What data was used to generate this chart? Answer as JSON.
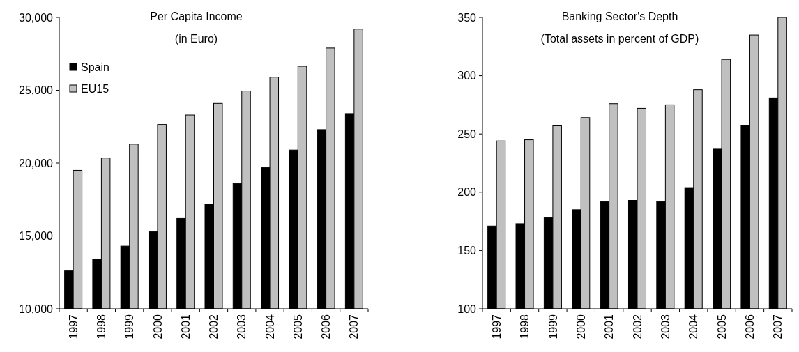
{
  "chart_data": [
    {
      "type": "bar",
      "title": "Per Capita Income",
      "subtitle": "(in Euro)",
      "categories": [
        "1997",
        "1998",
        "1999",
        "2000",
        "2001",
        "2002",
        "2003",
        "2004",
        "2005",
        "2006",
        "2007"
      ],
      "series": [
        {
          "name": "Spain",
          "color": "#000000",
          "values": [
            12600,
            13400,
            14300,
            15300,
            16200,
            17200,
            18600,
            19700,
            20900,
            22300,
            23400
          ]
        },
        {
          "name": "EU15",
          "color": "#c0c0c0",
          "values": [
            19500,
            20350,
            21300,
            22650,
            23300,
            24100,
            24950,
            25900,
            26650,
            27900,
            29200
          ]
        }
      ],
      "ylim": [
        10000,
        30000
      ],
      "yticks": [
        {
          "value": 10000,
          "label": "10,000"
        },
        {
          "value": 15000,
          "label": "15,000"
        },
        {
          "value": 20000,
          "label": "20,000"
        },
        {
          "value": 25000,
          "label": "25,000"
        },
        {
          "value": 30000,
          "label": "30,000"
        }
      ],
      "legend": "top left"
    },
    {
      "type": "bar",
      "title": "Banking Sector's Depth",
      "subtitle": "(Total assets in percent of GDP)",
      "categories": [
        "1997",
        "1998",
        "1999",
        "2000",
        "2001",
        "2002",
        "2003",
        "2004",
        "2005",
        "2006",
        "2007"
      ],
      "series": [
        {
          "color": "#000000",
          "values": [
            171,
            173,
            178,
            185,
            192,
            193,
            192,
            204,
            237,
            257,
            281
          ]
        },
        {
          "color": "#c0c0c0",
          "values": [
            244,
            245,
            257,
            264,
            276,
            272,
            275,
            288,
            314,
            335,
            350
          ]
        }
      ],
      "ylim": [
        100,
        350
      ],
      "yticks": [
        100,
        150,
        200,
        250,
        300,
        350
      ]
    }
  ]
}
